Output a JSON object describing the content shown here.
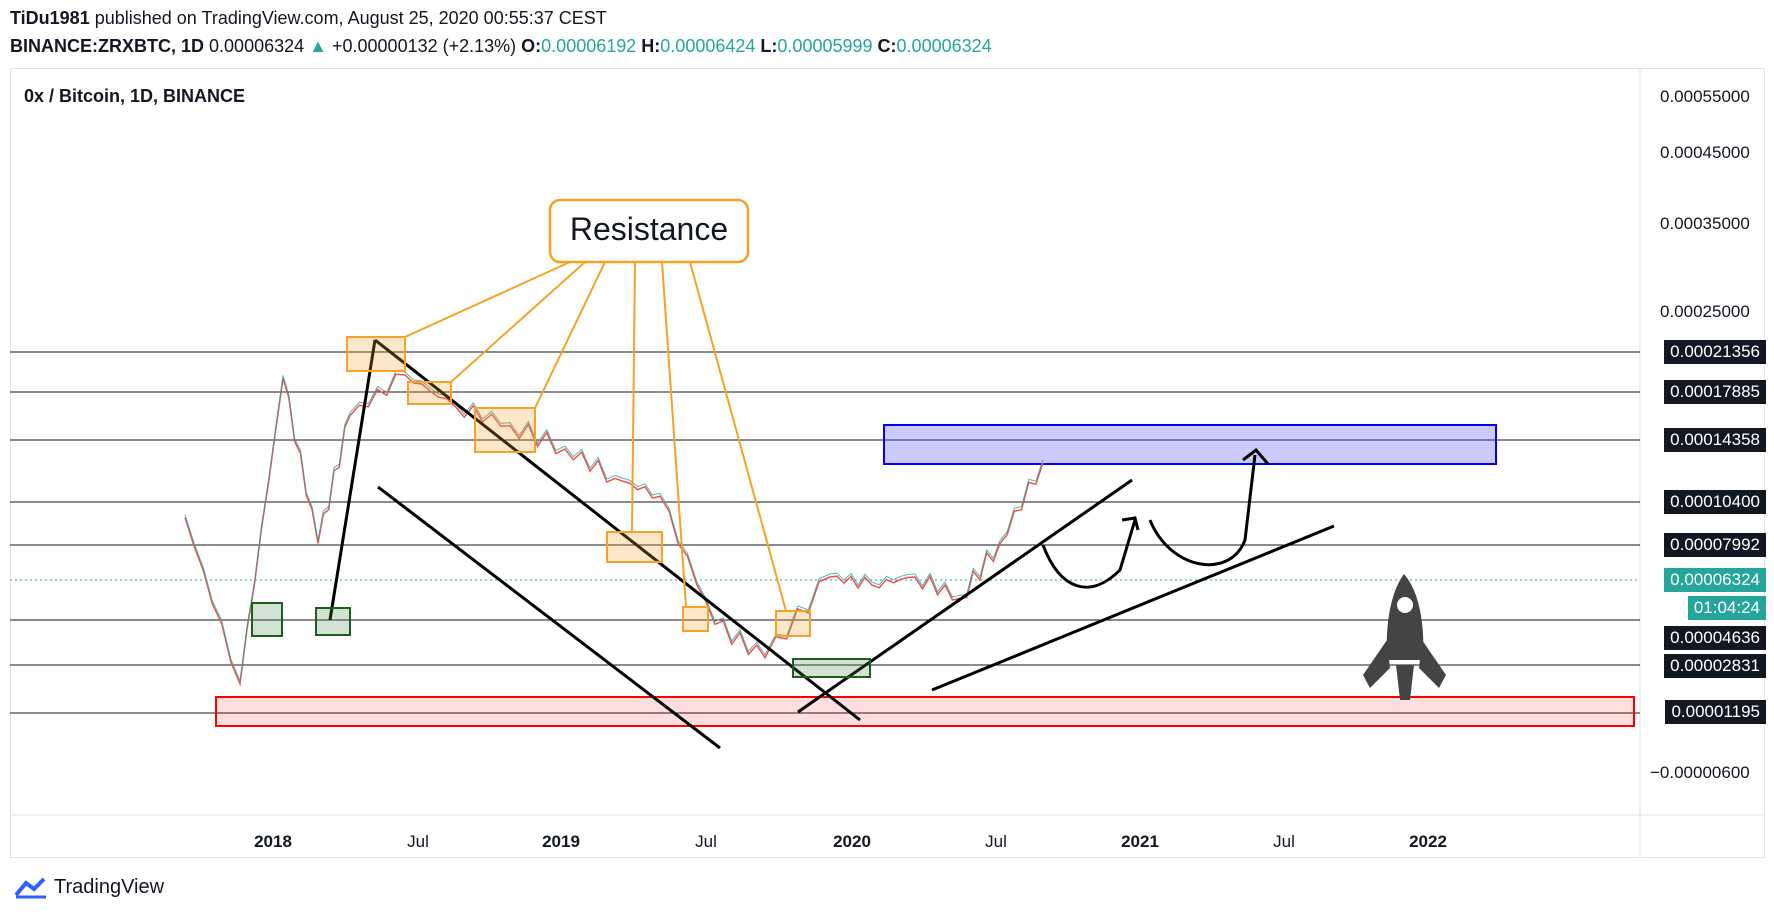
{
  "header": {
    "publisher": "TiDu1981",
    "published_text": "published on TradingView.com, August 25, 2020 00:55:37 CEST",
    "symbol_interval": "BINANCE:ZRXBTC, 1D",
    "last": "0.00006324",
    "change": "+0.00000132 (+2.13%)",
    "o_label": "O:",
    "o": "0.00006192",
    "h_label": "H:",
    "h": "0.00006424",
    "l_label": "L:",
    "l": "0.00005999",
    "c_label": "C:",
    "c": "0.00006324"
  },
  "chart_title": "0x / Bitcoin, 1D, BINANCE",
  "annotation": {
    "resistance": "Resistance"
  },
  "price_axis": {
    "ticks": [
      "0.00055000",
      "0.00045000",
      "0.00035000",
      "0.00025000",
      "−0.00000600"
    ],
    "level_labels": [
      "0.00021356",
      "0.00017885",
      "0.00014358",
      "0.00010400",
      "0.00007992",
      "0.00004636",
      "0.00002831",
      "0.00001195"
    ],
    "current_price": "0.00006324",
    "countdown": "01:04:24"
  },
  "time_axis": [
    "2018",
    "Jul",
    "2019",
    "Jul",
    "2020",
    "Jul",
    "2021",
    "Jul",
    "2022"
  ],
  "footer": {
    "brand": "TradingView"
  },
  "colors": {
    "up": "#26a69a",
    "down": "#ef5350",
    "resistance": "#f7a126",
    "target_zone": "#0000ff",
    "support_zone": "#ff0000"
  },
  "chart_data": {
    "type": "line",
    "title": "0x / Bitcoin, 1D, BINANCE",
    "x": [
      "2017-10",
      "2017-12",
      "2018-01",
      "2018-03",
      "2018-05",
      "2018-07",
      "2018-09",
      "2018-11",
      "2019-01",
      "2019-03",
      "2019-05",
      "2019-07",
      "2019-09",
      "2019-11",
      "2020-01",
      "2020-03",
      "2020-05",
      "2020-07",
      "2020-08"
    ],
    "series": [
      {
        "values": [
          5e-05,
          1.2e-05,
          0.000165,
          4e-05,
          0.00012,
          0.00017,
          0.00013,
          0.00011,
          9e-05,
          7e-05,
          6e-05,
          2e-05,
          1.5e-05,
          3e-05,
          2.8e-05,
          3e-05,
          2.5e-05,
          4e-05,
          8e-05
        ]
      }
    ],
    "horizontal_levels": [
      0.00021356,
      0.00017885,
      0.00014358,
      0.000104,
      7.992e-05,
      4.636e-05,
      2.831e-05,
      1.195e-05
    ],
    "target_zone": [
      0.00012,
      0.00015
    ],
    "support_zone": [
      5e-06,
      2e-05
    ],
    "last_price": 6.324e-05
  }
}
